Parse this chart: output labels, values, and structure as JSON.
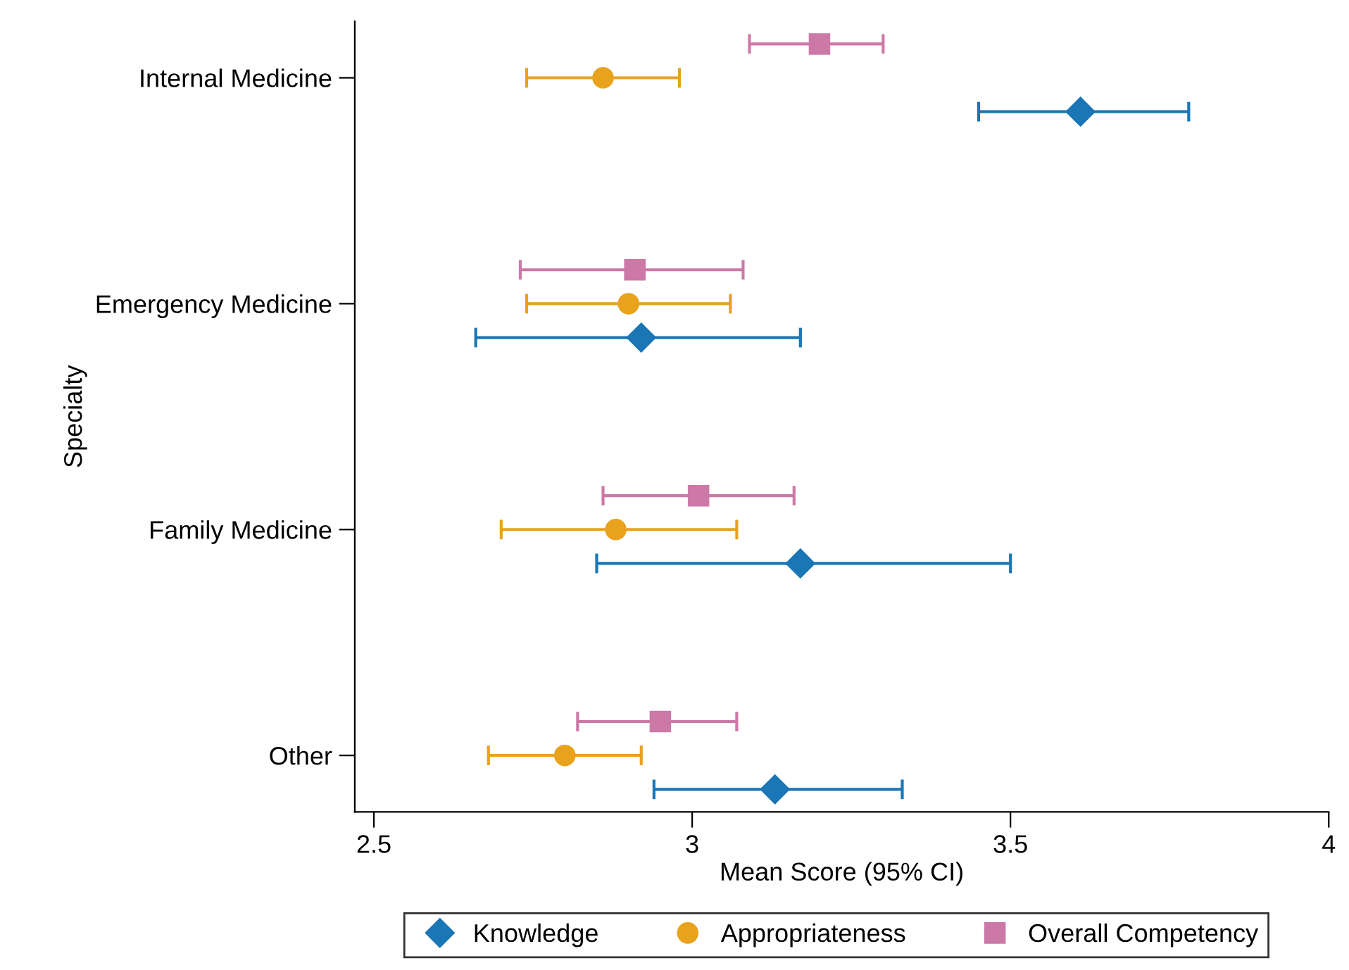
{
  "chart_data": {
    "type": "scatter",
    "orientation": "horizontal",
    "xlabel": "Mean Score (95% CI)",
    "ylabel": "Specialty",
    "categories": [
      "Internal Medicine",
      "Emergency Medicine",
      "Family Medicine",
      "Other"
    ],
    "series": [
      {
        "name": "Knowledge",
        "color": "#1a76b5",
        "marker": "diamond",
        "values": [
          3.61,
          2.92,
          3.17,
          3.13
        ],
        "errors": [
          [
            3.45,
            3.78
          ],
          [
            2.66,
            3.17
          ],
          [
            2.85,
            3.5
          ],
          [
            2.94,
            3.33
          ]
        ]
      },
      {
        "name": "Appropriateness",
        "color": "#e8a21c",
        "marker": "circle",
        "values": [
          2.86,
          2.9,
          2.88,
          2.8
        ],
        "errors": [
          [
            2.74,
            2.98
          ],
          [
            2.74,
            3.06
          ],
          [
            2.7,
            3.07
          ],
          [
            2.68,
            2.92
          ]
        ]
      },
      {
        "name": "Overall Competency",
        "color": "#cc79a7",
        "marker": "square",
        "values": [
          3.2,
          2.91,
          3.01,
          2.95
        ],
        "errors": [
          [
            3.09,
            3.3
          ],
          [
            2.73,
            3.08
          ],
          [
            2.86,
            3.16
          ],
          [
            2.82,
            3.07
          ]
        ]
      }
    ],
    "xlim": [
      2.47,
      4.0
    ],
    "xticks": [
      2.5,
      3,
      3.5,
      4
    ],
    "grid": false,
    "legend": "bottom"
  }
}
